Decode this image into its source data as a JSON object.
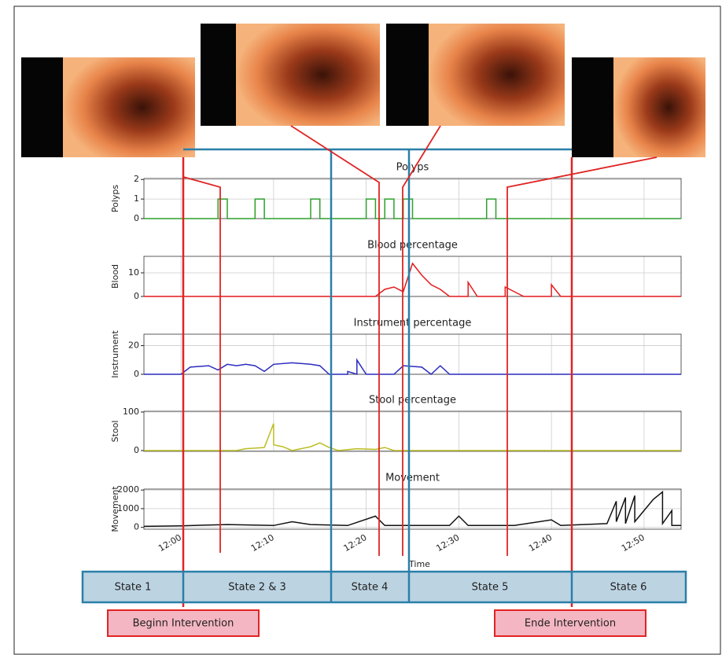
{
  "chart_data": [
    {
      "type": "line",
      "title": "Polyps",
      "ylabel": "Polyps",
      "color": "#2ca02c",
      "grid": true,
      "xlim": [
        "11:56",
        "12:54"
      ],
      "xticks": [
        "12:00",
        "12:10",
        "12:20",
        "12:30",
        "12:40",
        "12:50"
      ],
      "ylim": [
        0,
        2.05
      ],
      "yticks": [
        0,
        1,
        2
      ],
      "x": [
        "11:56",
        "12:04",
        "12:04",
        "12:05",
        "12:05",
        "12:08",
        "12:08",
        "12:09",
        "12:09",
        "12:14",
        "12:14",
        "12:15",
        "12:15",
        "12:20",
        "12:20",
        "12:21",
        "12:21",
        "12:22",
        "12:22",
        "12:23",
        "12:23",
        "12:24",
        "12:24",
        "12:25",
        "12:25",
        "12:33",
        "12:33",
        "12:34",
        "12:34",
        "12:54"
      ],
      "values": [
        0,
        0,
        1,
        1,
        0,
        0,
        1,
        1,
        0,
        0,
        1,
        1,
        0,
        0,
        1,
        1,
        0,
        0,
        1,
        1,
        0,
        0,
        1,
        1,
        0,
        0,
        1,
        1,
        0,
        0
      ]
    },
    {
      "type": "line",
      "title": "Blood percentage",
      "ylabel": "Blood",
      "color": "#e41a1c",
      "grid": true,
      "xlim": [
        "11:56",
        "12:54"
      ],
      "xticks": [
        "12:00",
        "12:10",
        "12:20",
        "12:30",
        "12:40",
        "12:50"
      ],
      "ylim": [
        0,
        17
      ],
      "yticks": [
        0,
        10
      ],
      "x": [
        "11:56",
        "12:21",
        "12:22",
        "12:23",
        "12:24",
        "12:25",
        "12:26",
        "12:27",
        "12:28",
        "12:29",
        "12:31",
        "12:31",
        "12:32",
        "12:35",
        "12:35",
        "12:36",
        "12:37",
        "12:40",
        "12:40",
        "12:41",
        "12:54"
      ],
      "values": [
        0,
        0,
        3,
        4,
        2,
        14,
        9,
        5,
        3,
        0,
        0,
        6,
        0,
        0,
        4,
        2,
        0,
        0,
        5,
        0,
        0
      ]
    },
    {
      "type": "line",
      "title": "Instrument percentage",
      "ylabel": "Instrument",
      "color": "#2b2bbf",
      "grid": true,
      "xlim": [
        "11:56",
        "12:54"
      ],
      "xticks": [
        "12:00",
        "12:10",
        "12:20",
        "12:30",
        "12:40",
        "12:50"
      ],
      "ylim": [
        0,
        28
      ],
      "yticks": [
        0,
        20
      ],
      "x": [
        "11:56",
        "12:00",
        "12:01",
        "12:03",
        "12:04",
        "12:05",
        "12:06",
        "12:07",
        "12:08",
        "12:09",
        "12:10",
        "12:12",
        "12:14",
        "12:15",
        "12:16",
        "12:18",
        "12:18",
        "12:19",
        "12:19",
        "12:20",
        "12:23",
        "12:24",
        "12:26",
        "12:27",
        "12:28",
        "12:29",
        "12:54"
      ],
      "values": [
        0,
        0,
        5,
        6,
        3,
        7,
        6,
        7,
        6,
        2,
        7,
        8,
        7,
        6,
        0,
        0,
        2,
        0,
        10,
        0,
        0,
        6,
        5,
        0,
        6,
        0,
        0
      ]
    },
    {
      "type": "line",
      "title": "Stool percentage",
      "ylabel": "Stool",
      "color": "#bcbd22",
      "grid": true,
      "xlim": [
        "11:56",
        "12:54"
      ],
      "xticks": [
        "12:00",
        "12:10",
        "12:20",
        "12:30",
        "12:40",
        "12:50"
      ],
      "ylim": [
        -2,
        102
      ],
      "yticks": [
        0,
        100
      ],
      "x": [
        "11:56",
        "12:06",
        "12:07",
        "12:09",
        "12:10",
        "12:10",
        "12:11",
        "12:12",
        "12:14",
        "12:15",
        "12:16",
        "12:17",
        "12:19",
        "12:21",
        "12:22",
        "12:23",
        "12:54"
      ],
      "values": [
        0,
        0,
        5,
        8,
        70,
        15,
        10,
        0,
        10,
        20,
        8,
        0,
        5,
        3,
        8,
        0,
        0
      ]
    },
    {
      "type": "line",
      "title": "Movement",
      "ylabel": "Movement",
      "xlabel": "Time",
      "color": "#111111",
      "grid": true,
      "xlim": [
        "11:56",
        "12:54"
      ],
      "xticks": [
        "12:00",
        "12:10",
        "12:20",
        "12:30",
        "12:40",
        "12:50"
      ],
      "ylim": [
        -100,
        2050
      ],
      "yticks": [
        0,
        1000,
        2000
      ],
      "x": [
        "11:56",
        "12:00",
        "12:05",
        "12:10",
        "12:12",
        "12:14",
        "12:18",
        "12:21",
        "12:22",
        "12:29",
        "12:30",
        "12:31",
        "12:36",
        "12:40",
        "12:41",
        "12:46",
        "12:47",
        "12:47",
        "12:48",
        "12:48",
        "12:49",
        "12:49",
        "12:51",
        "12:52",
        "12:52",
        "12:53",
        "12:53",
        "12:54"
      ],
      "values": [
        50,
        80,
        150,
        100,
        300,
        150,
        100,
        600,
        100,
        100,
        600,
        100,
        100,
        400,
        100,
        200,
        1400,
        300,
        1600,
        200,
        1700,
        300,
        1500,
        1900,
        200,
        900,
        100,
        100
      ]
    }
  ],
  "states": [
    "State 1",
    "State 2 & 3",
    "State 4",
    "State 5",
    "State 6"
  ],
  "annotations": [
    "Beginn Intervention",
    "Ende Intervention"
  ]
}
